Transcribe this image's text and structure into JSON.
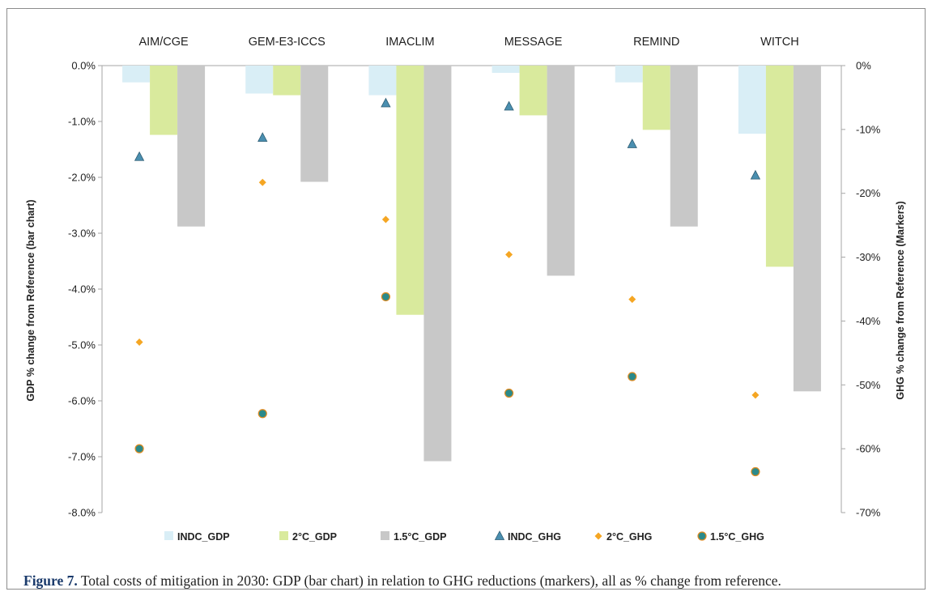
{
  "caption": {
    "label": "Figure 7.",
    "text": " Total costs of mitigation in 2030: GDP (bar chart) in relation to GHG reductions (markers), all as % change from reference."
  },
  "chart_data": {
    "type": "bar",
    "categories": [
      "AIM/CGE",
      "GEM-E3-ICCS",
      "IMACLIM",
      "MESSAGE",
      "REMIND",
      "WITCH"
    ],
    "ylabel": "GDP % change from Reference (bar chart)",
    "y2label": "GHG % change from Reference (Markers)",
    "ylim": [
      -8,
      0
    ],
    "y2lim": [
      -70,
      0
    ],
    "yticks": [
      "0.0%",
      "-1.0%",
      "-2.0%",
      "-3.0%",
      "-4.0%",
      "-5.0%",
      "-6.0%",
      "-7.0%",
      "-8.0%"
    ],
    "y2ticks": [
      "0%",
      "-10%",
      "-20%",
      "-30%",
      "-40%",
      "-50%",
      "-60%",
      "-70%"
    ],
    "legend_position": "bottom",
    "bar_series": [
      {
        "name": "INDC_GDP",
        "color": "#d9eef6",
        "values": [
          -0.3,
          -0.5,
          -0.53,
          -0.13,
          -0.3,
          -1.22
        ]
      },
      {
        "name": "2°C_GDP",
        "color": "#d9ea9d",
        "values": [
          -1.24,
          -0.53,
          -4.46,
          -0.89,
          -1.15,
          -3.6
        ]
      },
      {
        "name": "1.5°C_GDP",
        "color": "#c8c8c8",
        "values": [
          -2.88,
          -2.08,
          -7.08,
          -3.76,
          -2.88,
          -5.83
        ]
      }
    ],
    "marker_series": [
      {
        "name": "INDC_GHG",
        "marker": "triangle",
        "color": "#4a8fb0",
        "values": [
          -14.3,
          -11.3,
          -5.9,
          -6.4,
          -12.3,
          -17.2
        ]
      },
      {
        "name": "2°C_GHG",
        "marker": "diamond",
        "color": "#f5a623",
        "values": [
          -43.3,
          -18.3,
          -24.1,
          -29.6,
          -36.6,
          -51.6
        ]
      },
      {
        "name": "1.5°C_GHG",
        "marker": "circle",
        "color": "#2b8a8a",
        "values": [
          -60.0,
          -54.5,
          -36.2,
          -51.3,
          -48.7,
          -63.6
        ]
      }
    ]
  }
}
